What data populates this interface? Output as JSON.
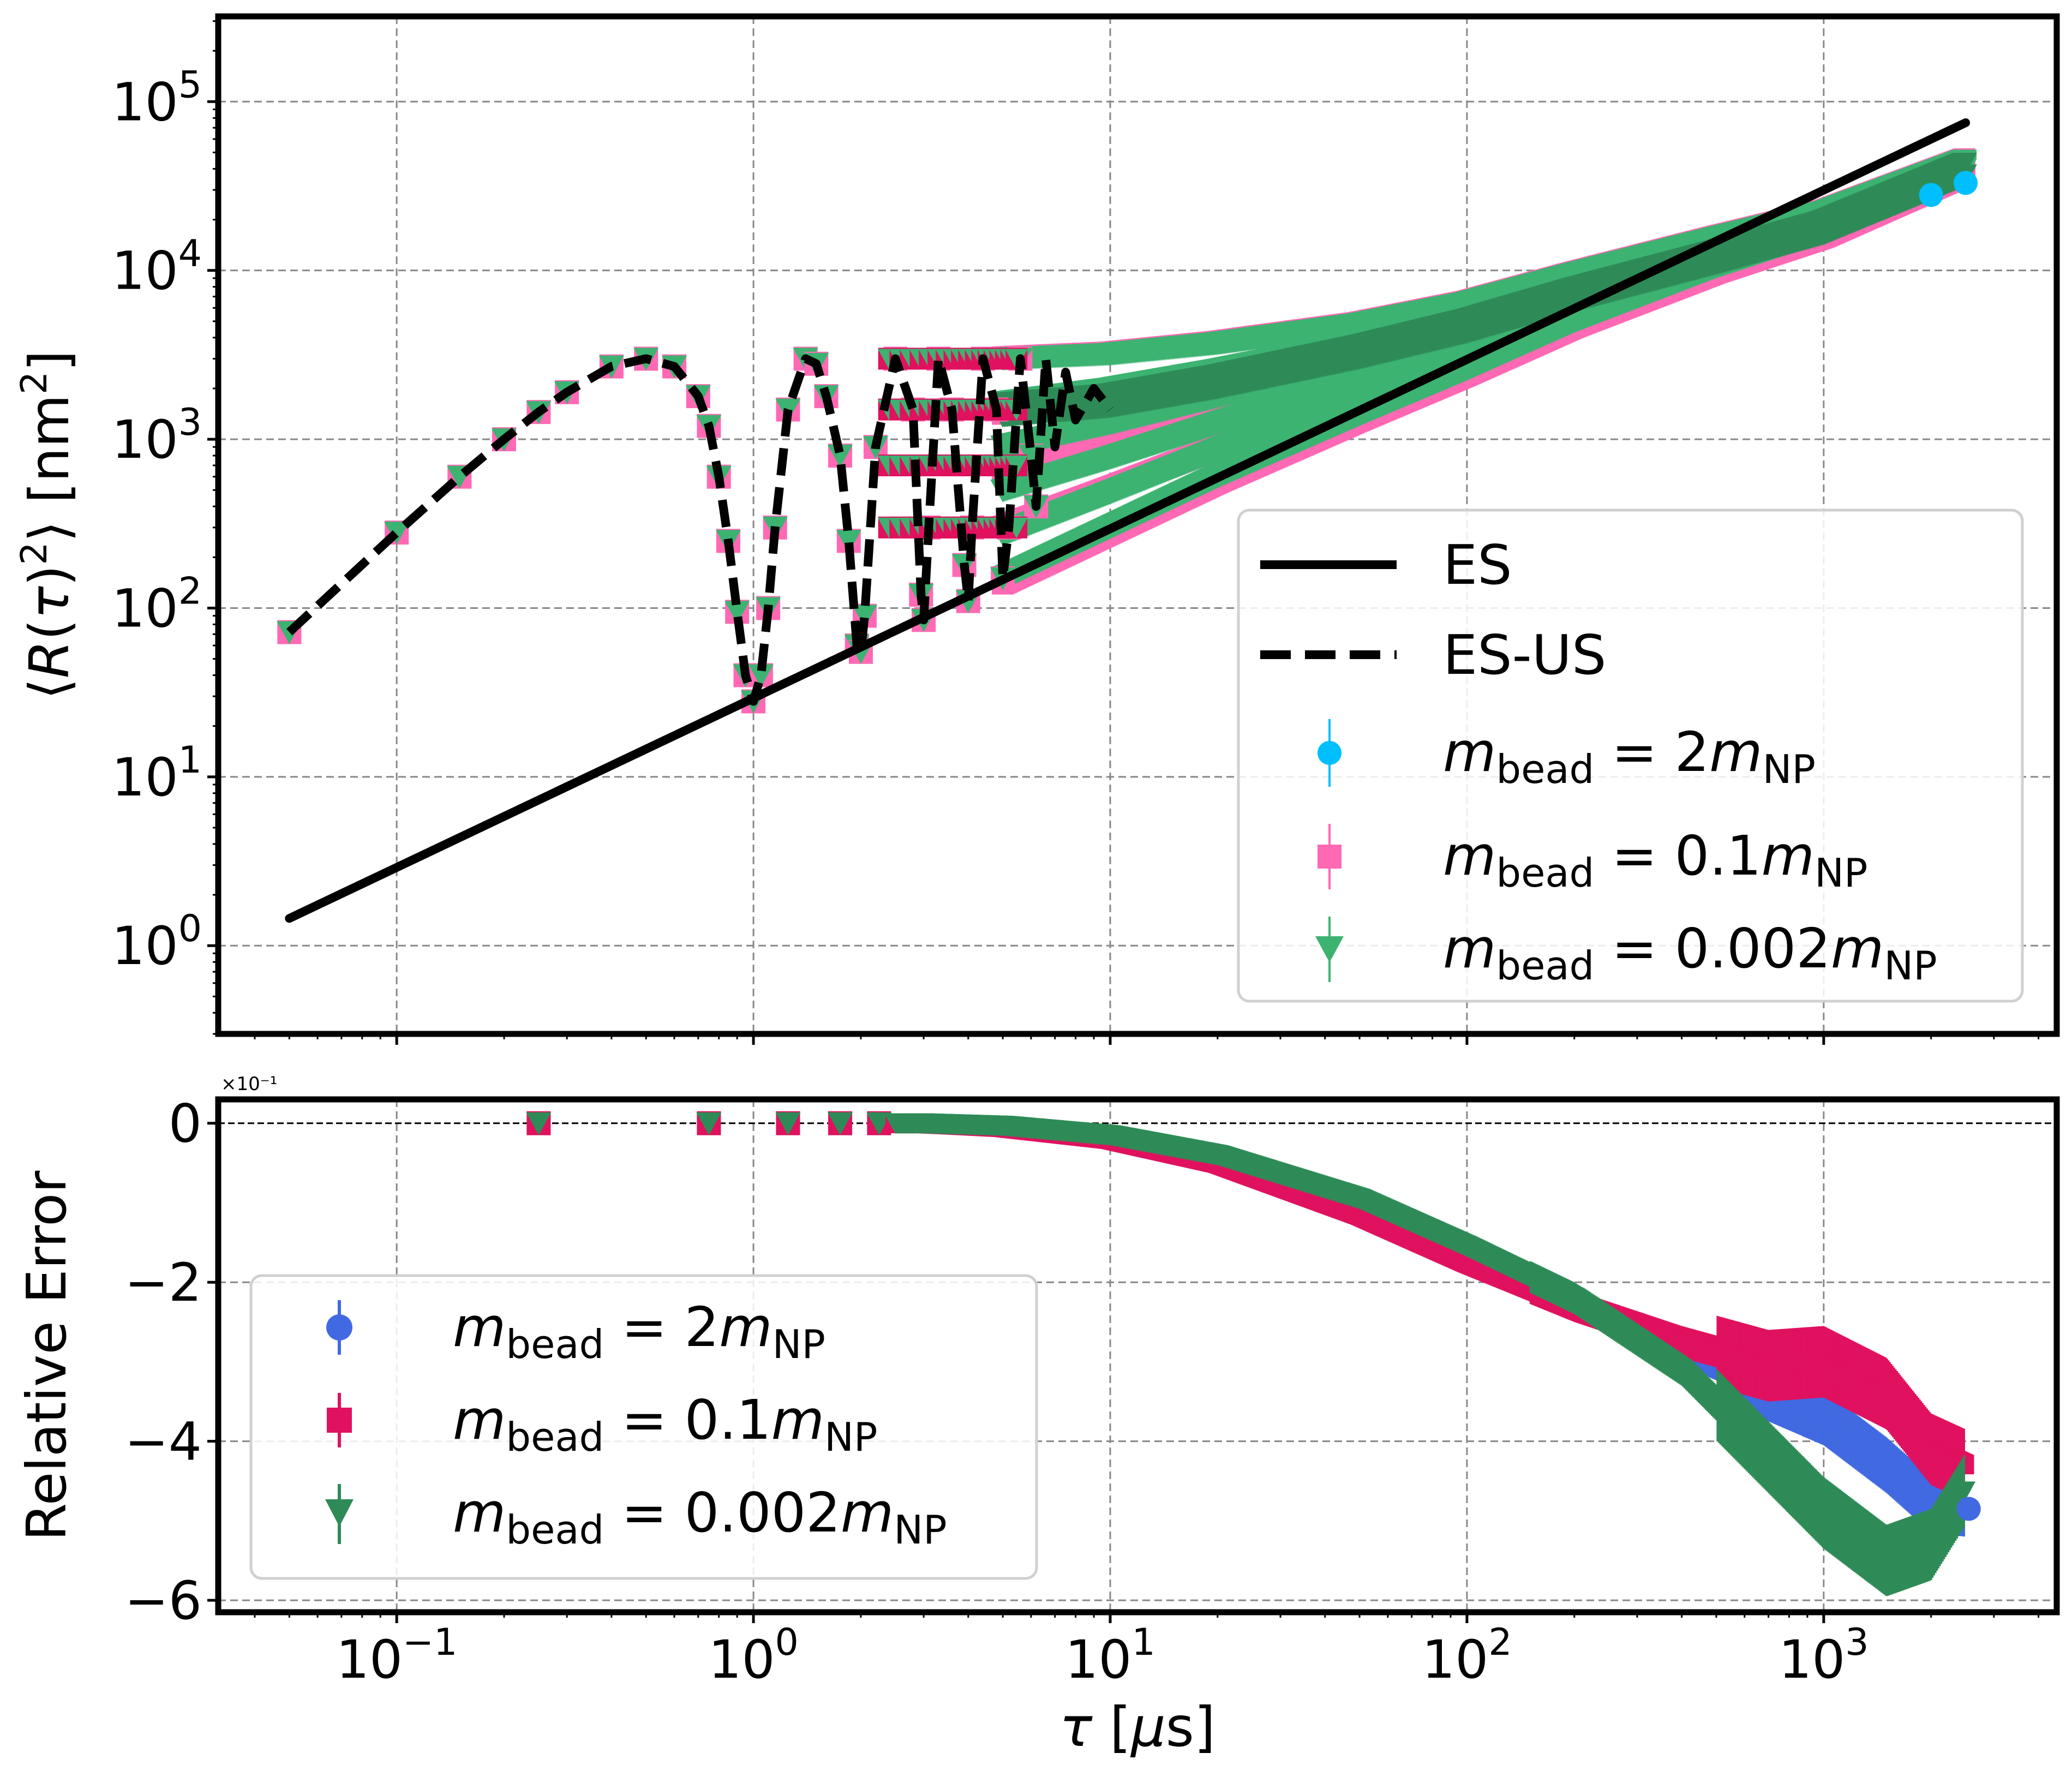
{
  "chart_data": [
    {
      "type": "line",
      "panel": "top",
      "ylabel_text": "⟨R(τ)²⟩ [nm²]",
      "xscale": "log",
      "yscale": "log",
      "xlim": [
        0.0316,
        4500
      ],
      "ylim": [
        0.3,
        320000
      ],
      "grid": true,
      "legend_position": "lower-right",
      "yticks": [
        {
          "value": 1,
          "base": "10",
          "exp": "0"
        },
        {
          "value": 10,
          "base": "10",
          "exp": "1"
        },
        {
          "value": 100,
          "base": "10",
          "exp": "2"
        },
        {
          "value": 1000,
          "base": "10",
          "exp": "3"
        },
        {
          "value": 10000,
          "base": "10",
          "exp": "4"
        },
        {
          "value": 100000,
          "base": "10",
          "exp": "5"
        }
      ],
      "series": [
        {
          "name": "ES",
          "style": "solid",
          "color": "#000000",
          "x": [
            0.05,
            2500
          ],
          "y": [
            1.45,
            75000
          ]
        },
        {
          "name": "ES-US",
          "style": "dashed",
          "color": "#000000",
          "x": [
            0.05,
            0.1,
            0.15,
            0.2,
            0.25,
            0.3,
            0.4,
            0.5,
            0.6,
            0.7,
            0.75,
            0.8,
            0.85,
            0.9,
            0.95,
            1.0,
            1.05,
            1.1,
            1.15,
            1.25,
            1.4,
            1.5,
            1.6,
            1.75,
            1.85,
            1.95,
            2.0,
            2.05,
            2.2,
            2.5,
            2.8,
            2.95,
            3.0,
            3.1,
            3.3,
            3.6,
            3.9,
            4.0,
            4.1,
            4.4,
            4.8,
            5.0,
            5.2,
            5.6,
            6.0,
            6.2,
            6.6,
            7.0,
            7.5,
            8.0,
            9.0,
            10.0
          ],
          "y": [
            72,
            280,
            600,
            1000,
            1450,
            1900,
            2700,
            3000,
            2700,
            1800,
            1200,
            600,
            250,
            95,
            40,
            28,
            40,
            100,
            300,
            1500,
            3000,
            2800,
            1800,
            800,
            250,
            60,
            55,
            90,
            900,
            3000,
            1500,
            120,
            85,
            300,
            3000,
            1500,
            180,
            110,
            300,
            3000,
            1500,
            150,
            300,
            3000,
            800,
            400,
            3000,
            900,
            2500,
            1300,
            2000,
            1500
          ]
        },
        {
          "name": "m_bead = 2m_NP",
          "color": "#00bfff",
          "marker": "circle",
          "x": [
            5,
            10,
            20,
            50,
            100,
            200,
            500,
            1000,
            2000,
            2500
          ],
          "y": [
            900,
            1300,
            1900,
            3200,
            4500,
            6800,
            11000,
            17000,
            28000,
            33000
          ]
        },
        {
          "name": "m_bead = 0.1m_NP",
          "color": "#ff69b4",
          "marker": "square",
          "x": [
            0.05,
            0.1,
            0.15,
            0.2,
            0.25,
            0.3,
            0.4,
            0.5,
            0.6,
            0.75,
            0.9,
            1.0,
            1.1,
            1.25,
            1.5,
            1.75,
            2.0,
            2.5,
            3.0,
            4.0,
            5.0,
            10,
            20,
            50,
            100,
            200,
            500,
            1000,
            2000,
            2500
          ],
          "y": [
            72,
            280,
            600,
            1000,
            1450,
            1900,
            2700,
            3000,
            2700,
            1500,
            100,
            28,
            300,
            1500,
            3000,
            1000,
            55,
            3000,
            85,
            110,
            150,
            1500,
            2100,
            3300,
            4600,
            7000,
            12000,
            19000,
            33000,
            40000
          ]
        },
        {
          "name": "m_bead = 0.002m_NP",
          "color": "#3cb371",
          "marker": "triangle-down",
          "x": [
            0.05,
            0.1,
            0.15,
            0.2,
            0.25,
            0.3,
            0.4,
            0.5,
            0.6,
            0.75,
            0.9,
            1.0,
            1.1,
            1.25,
            1.5,
            1.75,
            2.0,
            2.5,
            3.0,
            4.0,
            5.0,
            10,
            20,
            50,
            100,
            200,
            500,
            1000,
            2000,
            2500
          ],
          "y": [
            72,
            280,
            600,
            1000,
            1450,
            1900,
            2700,
            3000,
            2700,
            1500,
            100,
            28,
            300,
            1500,
            3000,
            1000,
            55,
            3000,
            85,
            110,
            150,
            1700,
            2400,
            3600,
            5000,
            7500,
            12000,
            18000,
            32000,
            42000
          ]
        }
      ]
    },
    {
      "type": "line",
      "panel": "bottom",
      "ylabel": "Relative Error",
      "xlabel_text": "τ [μs]",
      "offset_text": "×10⁻¹",
      "xscale": "log",
      "xlim": [
        0.0316,
        4500
      ],
      "ylim": [
        -6.15,
        0.3
      ],
      "grid": true,
      "legend_position": "lower-left",
      "yticks": [
        {
          "value": 0,
          "label": "0"
        },
        {
          "value": -2,
          "label": "−2"
        },
        {
          "value": -4,
          "label": "−4"
        },
        {
          "value": -6,
          "label": "−6"
        }
      ],
      "xticks": [
        {
          "value": 0.1,
          "base": "10",
          "exp": "−1"
        },
        {
          "value": 1,
          "base": "10",
          "exp": "0"
        },
        {
          "value": 10,
          "base": "10",
          "exp": "1"
        },
        {
          "value": 100,
          "base": "10",
          "exp": "2"
        },
        {
          "value": 1000,
          "base": "10",
          "exp": "3"
        }
      ],
      "series": [
        {
          "name": "m_bead = 2m_NP",
          "color": "#4169e1",
          "marker": "circle",
          "x": [
            0.25,
            0.75,
            1.25,
            1.75,
            2.25,
            3,
            5,
            10,
            20,
            50,
            100,
            200,
            400,
            700,
            1000,
            1500,
            2000,
            2500
          ],
          "y": [
            0,
            0,
            0,
            0,
            0,
            0,
            -0.05,
            -0.2,
            -0.5,
            -1.1,
            -1.7,
            -2.3,
            -2.9,
            -3.4,
            -3.7,
            -4.3,
            -4.8,
            -4.85
          ]
        },
        {
          "name": "m_bead = 0.1m_NP",
          "color": "#e0115f",
          "marker": "square",
          "x": [
            0.25,
            0.75,
            1.25,
            1.75,
            2.25,
            3,
            5,
            10,
            20,
            50,
            100,
            200,
            400,
            700,
            1000,
            1500,
            2000,
            2500
          ],
          "y": [
            0,
            0,
            0,
            0,
            0,
            0,
            -0.05,
            -0.2,
            -0.5,
            -1.15,
            -1.75,
            -2.3,
            -2.75,
            -3.05,
            -3.0,
            -3.4,
            -4.1,
            -4.3
          ]
        },
        {
          "name": "m_bead = 0.002m_NP",
          "color": "#2e8b57",
          "marker": "triangle-down",
          "x": [
            0.25,
            0.75,
            1.25,
            1.75,
            2.25,
            3,
            5,
            10,
            20,
            50,
            100,
            200,
            400,
            700,
            1000,
            1500,
            2000,
            2500
          ],
          "y": [
            0,
            0,
            0,
            0,
            0,
            0,
            -0.03,
            -0.15,
            -0.4,
            -0.95,
            -1.55,
            -2.2,
            -3.1,
            -4.2,
            -4.9,
            -5.5,
            -5.3,
            -4.6
          ]
        }
      ]
    }
  ],
  "legend_top": {
    "es": "ES",
    "esus": "ES-US",
    "m": "m",
    "sub_bead": "bead",
    "sub_np": "NP",
    "eq2": " = 2",
    "eq01": " = 0.1",
    "eq0002": " = 0.002"
  },
  "legend_bottom": {
    "m": "m",
    "sub_bead": "bead",
    "sub_np": "NP",
    "eq2": " = 2",
    "eq01": " = 0.1",
    "eq0002": " = 0.002"
  }
}
